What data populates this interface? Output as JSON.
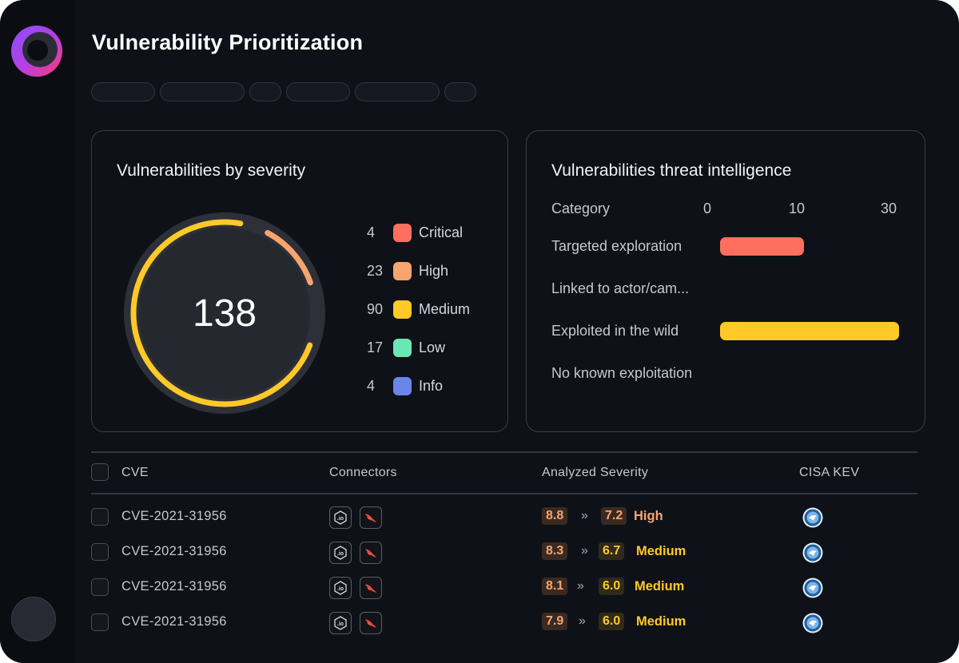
{
  "page": {
    "title": "Vulnerability Prioritization"
  },
  "colors": {
    "critical": "#ff6f5e",
    "high": "#f7a56d",
    "medium": "#ffc928",
    "low": "#6ae8b4",
    "info": "#6b86e8",
    "score_bg": "#3a2a22"
  },
  "severity_card": {
    "title": "Vulnerabilities by severity",
    "total": "138",
    "legend": [
      {
        "count": "4",
        "label": "Critical",
        "color": "#ff6f5e"
      },
      {
        "count": "23",
        "label": "High",
        "color": "#f7a56d"
      },
      {
        "count": "90",
        "label": "Medium",
        "color": "#ffc928"
      },
      {
        "count": "17",
        "label": "Low",
        "color": "#6ae8b4"
      },
      {
        "count": "4",
        "label": "Info",
        "color": "#6b86e8"
      }
    ]
  },
  "threat_card": {
    "title": "Vulnerabilities threat intelligence",
    "category_header": "Category",
    "axis_ticks": [
      "0",
      "10",
      "30"
    ],
    "rows": [
      {
        "label": "Targeted exploration",
        "value": 14,
        "color": "#ff6f5e"
      },
      {
        "label": "Linked to actor/cam...",
        "value": 0,
        "color": "#f7a56d"
      },
      {
        "label": "Exploited in the wild",
        "value": 30,
        "color": "#ffc928"
      },
      {
        "label": "No known exploitation",
        "value": 0,
        "color": "#6ae8b4"
      }
    ]
  },
  "table": {
    "headers": {
      "cve": "CVE",
      "connectors": "Connectors",
      "severity": "Analyzed Severity",
      "kev": "CISA KEV"
    },
    "connector_icons": [
      "io-connector-icon",
      "crowdstrike-falcon-icon"
    ],
    "kev_icon": "cisa-seal-icon",
    "rows": [
      {
        "cve": "CVE-2021-31956",
        "original": "8.8",
        "analyzed": "7.2",
        "severity": "High",
        "color": "#f7a56d"
      },
      {
        "cve": "CVE-2021-31956",
        "original": "8.3",
        "analyzed": "6.7",
        "severity": "Medium",
        "color": "#ffc928"
      },
      {
        "cve": "CVE-2021-31956",
        "original": "8.1",
        "analyzed": "6.0",
        "severity": "Medium",
        "color": "#ffc928"
      },
      {
        "cve": "CVE-2021-31956",
        "original": "7.9",
        "analyzed": "6.0",
        "severity": "Medium",
        "color": "#ffc928"
      }
    ]
  }
}
